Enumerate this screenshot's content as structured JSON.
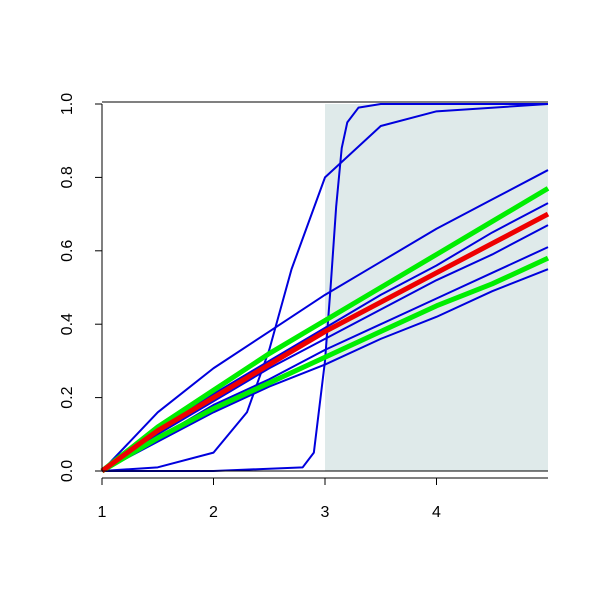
{
  "chart_data": {
    "type": "line",
    "xlim": [
      1,
      5
    ],
    "ylim": [
      0,
      1
    ],
    "xticks": [
      1,
      2,
      3,
      4
    ],
    "yticks": [
      {
        "value": 0,
        "label": "0.0"
      },
      {
        "value": 0.2,
        "label": "0.2"
      },
      {
        "value": 0.4,
        "label": "0.4"
      },
      {
        "value": 0.6,
        "label": "0.6"
      },
      {
        "value": 0.8,
        "label": "0.8"
      },
      {
        "value": 1,
        "label": "1.0"
      }
    ],
    "shade": {
      "x": [
        3,
        5
      ],
      "color": "#dfeaea"
    },
    "series": [
      {
        "color": "#0000dd",
        "x": [
          1,
          2,
          2.8,
          2.9,
          3,
          3.05,
          3.1,
          3.15,
          3.2,
          3.3,
          3.5,
          4,
          5
        ],
        "values": [
          0,
          0,
          0.01,
          0.05,
          0.3,
          0.5,
          0.72,
          0.88,
          0.95,
          0.99,
          1,
          1,
          1
        ]
      },
      {
        "color": "#0000dd",
        "x": [
          1,
          1.5,
          2,
          2.3,
          2.5,
          2.7,
          3,
          3.5,
          4,
          5
        ],
        "values": [
          0,
          0.01,
          0.05,
          0.16,
          0.33,
          0.55,
          0.8,
          0.94,
          0.98,
          1
        ]
      },
      {
        "color": "#0000dd",
        "x": [
          1,
          1.5,
          2,
          2.5,
          3,
          3.5,
          4,
          4.5,
          5
        ],
        "values": [
          0,
          0.16,
          0.28,
          0.38,
          0.48,
          0.57,
          0.66,
          0.74,
          0.82
        ]
      },
      {
        "color": "#0000dd",
        "x": [
          1,
          1.5,
          2,
          2.5,
          3,
          3.5,
          4,
          4.5,
          5
        ],
        "values": [
          0,
          0.11,
          0.21,
          0.3,
          0.39,
          0.48,
          0.56,
          0.65,
          0.73
        ]
      },
      {
        "color": "#0000dd",
        "x": [
          1,
          1.5,
          2,
          2.5,
          3,
          3.5,
          4,
          4.5,
          5
        ],
        "values": [
          0,
          0.1,
          0.19,
          0.28,
          0.36,
          0.44,
          0.52,
          0.59,
          0.67
        ]
      },
      {
        "color": "#0000dd",
        "x": [
          1,
          1.5,
          2,
          2.5,
          3,
          3.5,
          4,
          4.5,
          5
        ],
        "values": [
          0,
          0.09,
          0.18,
          0.25,
          0.33,
          0.4,
          0.47,
          0.54,
          0.61
        ]
      },
      {
        "color": "#0000dd",
        "x": [
          1,
          1.5,
          2,
          2.5,
          3,
          3.5,
          4,
          4.5,
          5
        ],
        "values": [
          0,
          0.08,
          0.16,
          0.23,
          0.29,
          0.36,
          0.42,
          0.49,
          0.55
        ]
      },
      {
        "color": "#00ee00",
        "x": [
          1,
          1.5,
          2,
          2.5,
          3,
          3.5,
          4,
          4.5,
          5
        ],
        "values": [
          0,
          0.12,
          0.22,
          0.32,
          0.41,
          0.5,
          0.59,
          0.68,
          0.77
        ]
      },
      {
        "color": "#00ee00",
        "x": [
          1,
          1.5,
          2,
          2.5,
          3,
          3.5,
          4,
          4.5,
          5
        ],
        "values": [
          0,
          0.09,
          0.17,
          0.24,
          0.31,
          0.38,
          0.45,
          0.51,
          0.58
        ]
      },
      {
        "color": "#ee0000",
        "x": [
          1,
          1.5,
          2,
          2.5,
          3,
          3.5,
          4,
          4.5,
          5
        ],
        "values": [
          0,
          0.11,
          0.2,
          0.29,
          0.38,
          0.46,
          0.54,
          0.62,
          0.7
        ]
      }
    ]
  }
}
